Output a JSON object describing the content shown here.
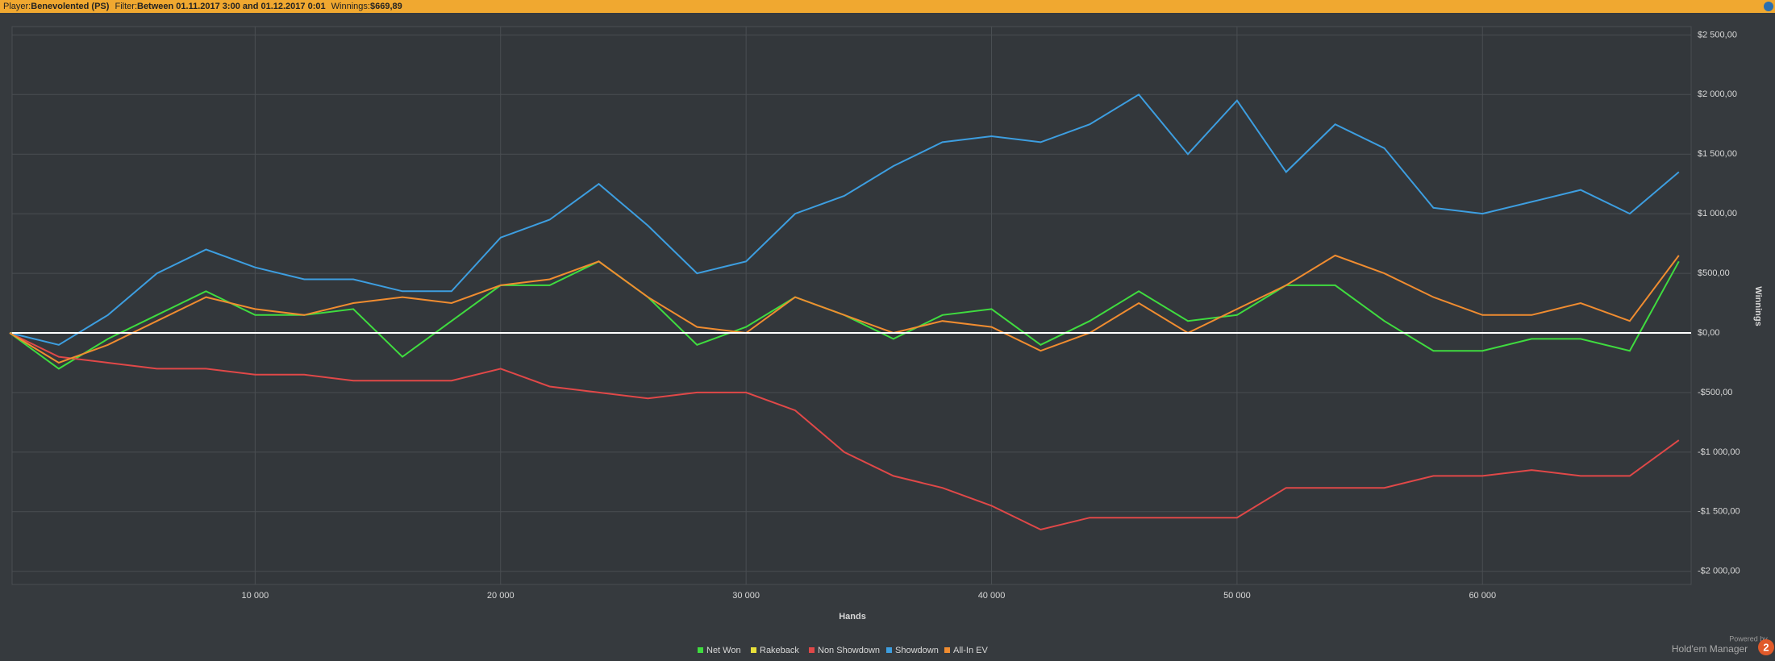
{
  "header": {
    "player_label": "Player:",
    "player": "Benevolented (PS)",
    "filter_label": "Filter:",
    "filter": "Between 01.11.2017 3:00 and 01.12.2017 0:01",
    "winnings_label": "Winnings:",
    "winnings": "$669,89"
  },
  "footer": {
    "powered": "Powered by",
    "brand": "Hold'em Manager",
    "logo": "2"
  },
  "chart_data": {
    "type": "line",
    "x_label": "Hands",
    "y_label": "Winnings",
    "x": [
      0,
      2000,
      4000,
      6000,
      8000,
      10000,
      12000,
      14000,
      16000,
      18000,
      20000,
      22000,
      24000,
      26000,
      28000,
      30000,
      32000,
      34000,
      36000,
      38000,
      40000,
      42000,
      44000,
      46000,
      48000,
      50000,
      52000,
      54000,
      56000,
      58000,
      60000,
      62000,
      64000,
      66000,
      68000
    ],
    "xlim": [
      0,
      68500
    ],
    "xticks": [
      {
        "value": 10000,
        "label": "10 000"
      },
      {
        "value": 20000,
        "label": "20 000"
      },
      {
        "value": 30000,
        "label": "30 000"
      },
      {
        "value": 40000,
        "label": "40 000"
      },
      {
        "value": 50000,
        "label": "50 000"
      },
      {
        "value": 60000,
        "label": "60 000"
      }
    ],
    "ylim": [
      -2110,
      2570
    ],
    "yticks": [
      {
        "value": -2000,
        "label": "-$2 000,00"
      },
      {
        "value": -1500,
        "label": "-$1 500,00"
      },
      {
        "value": -1000,
        "label": "-$1 000,00"
      },
      {
        "value": -500,
        "label": "-$500,00"
      },
      {
        "value": 0,
        "label": "$0,00"
      },
      {
        "value": 500,
        "label": "$500,00"
      },
      {
        "value": 1000,
        "label": "$1 000,00"
      },
      {
        "value": 1500,
        "label": "$1 500,00"
      },
      {
        "value": 2000,
        "label": "$2 000,00"
      },
      {
        "value": 2500,
        "label": "$2 500,00"
      }
    ],
    "grid": true,
    "legend": "bottom",
    "series": [
      {
        "name": "Net Won",
        "color": "#3fdc3f",
        "values": [
          0,
          -300,
          -50,
          150,
          350,
          150,
          150,
          200,
          -200,
          100,
          400,
          400,
          600,
          300,
          -100,
          50,
          300,
          150,
          -50,
          150,
          200,
          -100,
          100,
          350,
          100,
          150,
          400,
          400,
          100,
          -150,
          -150,
          -50,
          -50,
          -150,
          600
        ]
      },
      {
        "name": "Rakeback",
        "color": "#e8e03a",
        "values": [
          0,
          0,
          0,
          0,
          0,
          0,
          0,
          0,
          0,
          0,
          0,
          0,
          0,
          0,
          0,
          0,
          0,
          0,
          0,
          0,
          0,
          0,
          0,
          0,
          0,
          0,
          0,
          0,
          0,
          0,
          0,
          0,
          0,
          0,
          0
        ]
      },
      {
        "name": "Non Showdown",
        "color": "#e04848",
        "values": [
          0,
          -200,
          -250,
          -300,
          -300,
          -350,
          -350,
          -400,
          -400,
          -400,
          -300,
          -450,
          -500,
          -550,
          -500,
          -500,
          -650,
          -1000,
          -1200,
          -1300,
          -1450,
          -1650,
          -1550,
          -1550,
          -1550,
          -1550,
          -1300,
          -1300,
          -1300,
          -1200,
          -1200,
          -1150,
          -1200,
          -1200,
          -900
        ]
      },
      {
        "name": "Showdown",
        "color": "#3d9ee0",
        "values": [
          0,
          -100,
          150,
          500,
          700,
          550,
          450,
          450,
          350,
          350,
          800,
          950,
          1250,
          900,
          500,
          600,
          1000,
          1150,
          1400,
          1600,
          1650,
          1600,
          1750,
          2000,
          1500,
          1950,
          1350,
          1750,
          1550,
          1050,
          1000,
          1100,
          1200,
          1000,
          1350
        ]
      },
      {
        "name": "All-In EV",
        "color": "#f08c30",
        "values": [
          0,
          -250,
          -100,
          100,
          300,
          200,
          150,
          250,
          300,
          250,
          400,
          450,
          600,
          300,
          50,
          0,
          300,
          150,
          0,
          100,
          50,
          -150,
          0,
          250,
          0,
          200,
          400,
          650,
          500,
          300,
          150,
          150,
          250,
          100,
          650
        ]
      }
    ]
  }
}
